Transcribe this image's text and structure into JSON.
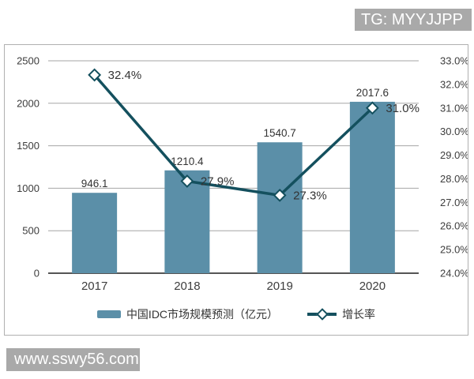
{
  "badges": {
    "top_right": "TG: MYYJJPP",
    "bottom_left": "www.sswy56.com"
  },
  "colors": {
    "bar": "#5b8fa8",
    "line": "#14505e",
    "grid": "#a6a6a6",
    "axis": "#555555",
    "text": "#3d3d3d",
    "badge_bg": "#a9a9a9",
    "badge_text": "#ffffff",
    "frame_border": "#b0b0b0"
  },
  "chart_data": {
    "type": "bar+line",
    "title": "",
    "categories": [
      "2017",
      "2018",
      "2019",
      "2020"
    ],
    "series": [
      {
        "name": "中国IDC市场规模预测（亿元）",
        "type": "bar",
        "axis": "left",
        "color": "#5b8fa8",
        "values": [
          946.1,
          1210.4,
          1540.7,
          2017.6
        ],
        "labels": [
          "946.1",
          "1210.4",
          "1540.7",
          "2017.6"
        ]
      },
      {
        "name": "增长率",
        "type": "line",
        "axis": "right",
        "color": "#14505e",
        "marker": "diamond",
        "values": [
          32.4,
          27.9,
          27.3,
          31.0
        ],
        "labels": [
          "32.4%",
          "27.9%",
          "27.3%",
          "31.0%"
        ]
      }
    ],
    "left_axis": {
      "min": 0,
      "max": 2500,
      "step": 500,
      "ticks": [
        "2500",
        "2000",
        "1500",
        "1000",
        "500",
        "0"
      ]
    },
    "right_axis": {
      "min": 24.0,
      "max": 33.0,
      "step": 1.0,
      "ticks": [
        "33.0%",
        "32.0%",
        "31.0%",
        "30.0%",
        "29.0%",
        "28.0%",
        "27.0%",
        "26.0%",
        "25.0%",
        "24.0%"
      ]
    },
    "grid": true,
    "legend_position": "bottom"
  }
}
